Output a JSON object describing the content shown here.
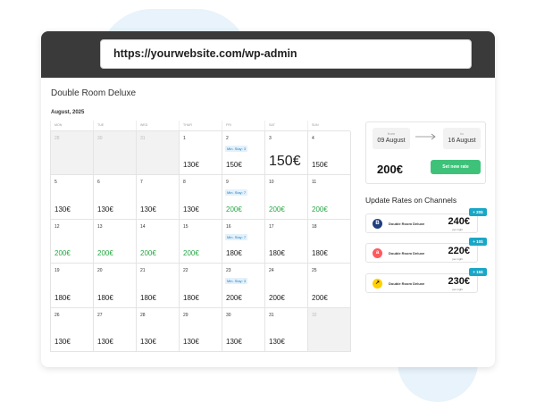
{
  "browser": {
    "url": "https://yourwebsite.com/wp-admin"
  },
  "page": {
    "title": "Double Room Deluxe",
    "month": "August, 2025"
  },
  "calendar": {
    "weekdays": [
      "MON",
      "TUE",
      "WED",
      "THUR",
      "FRI",
      "SAT",
      "SUN"
    ],
    "weeks": [
      [
        {
          "day": "28",
          "muted": true
        },
        {
          "day": "30",
          "muted": true
        },
        {
          "day": "31",
          "muted": true
        },
        {
          "day": "1",
          "price": "130€"
        },
        {
          "day": "2",
          "price": "150€",
          "min_stay": "Min. Stay: 3"
        },
        {
          "day": "3",
          "price": "150€",
          "big": true
        },
        {
          "day": "4",
          "price": "150€"
        }
      ],
      [
        {
          "day": "5",
          "price": "130€"
        },
        {
          "day": "6",
          "price": "130€"
        },
        {
          "day": "7",
          "price": "130€"
        },
        {
          "day": "8",
          "price": "130€"
        },
        {
          "day": "9",
          "price": "200€",
          "min_stay": "Min. Stay: 7",
          "green": true
        },
        {
          "day": "10",
          "price": "200€",
          "green": true
        },
        {
          "day": "11",
          "price": "200€",
          "green": true
        }
      ],
      [
        {
          "day": "12",
          "price": "200€",
          "green": true
        },
        {
          "day": "13",
          "price": "200€",
          "green": true
        },
        {
          "day": "14",
          "price": "200€",
          "green": true
        },
        {
          "day": "15",
          "price": "200€",
          "green": true
        },
        {
          "day": "16",
          "price": "180€",
          "min_stay": "Min. Stay: 7"
        },
        {
          "day": "17",
          "price": "180€"
        },
        {
          "day": "18",
          "price": "180€"
        }
      ],
      [
        {
          "day": "19",
          "price": "180€"
        },
        {
          "day": "20",
          "price": "180€"
        },
        {
          "day": "21",
          "price": "180€"
        },
        {
          "day": "22",
          "price": "180€"
        },
        {
          "day": "23",
          "price": "200€",
          "min_stay": "Min. Stay: 3"
        },
        {
          "day": "24",
          "price": "200€"
        },
        {
          "day": "25",
          "price": "200€"
        }
      ],
      [
        {
          "day": "26",
          "price": "130€"
        },
        {
          "day": "27",
          "price": "130€"
        },
        {
          "day": "28",
          "price": "130€"
        },
        {
          "day": "29",
          "price": "130€"
        },
        {
          "day": "30",
          "price": "130€"
        },
        {
          "day": "31",
          "price": "130€"
        },
        {
          "day": "32",
          "muted": true
        }
      ]
    ]
  },
  "rate_panel": {
    "from_label": "from",
    "from_value": "09 August",
    "to_label": "to",
    "to_value": "16 August",
    "price": "200€",
    "button_label": "Set new rate"
  },
  "channels": {
    "title": "Update Rates on Channels",
    "items": [
      {
        "logo": "B",
        "logo_icon": "booking-logo-icon",
        "name": "Double Room Deluxe",
        "price": "240€",
        "per": "per night",
        "badge": "+ 20$",
        "color": "#1f3f80"
      },
      {
        "logo": "a",
        "logo_icon": "airbnb-logo-icon",
        "name": "Double Room Deluxe",
        "price": "220€",
        "per": "per night",
        "badge": "+ 10$",
        "color": "#ff5a5f"
      },
      {
        "logo": "↗",
        "logo_icon": "expedia-logo-icon",
        "name": "Double Room Deluxe",
        "price": "230€",
        "per": "per night",
        "badge": "+ 15$",
        "color": "#ffd000"
      }
    ]
  }
}
